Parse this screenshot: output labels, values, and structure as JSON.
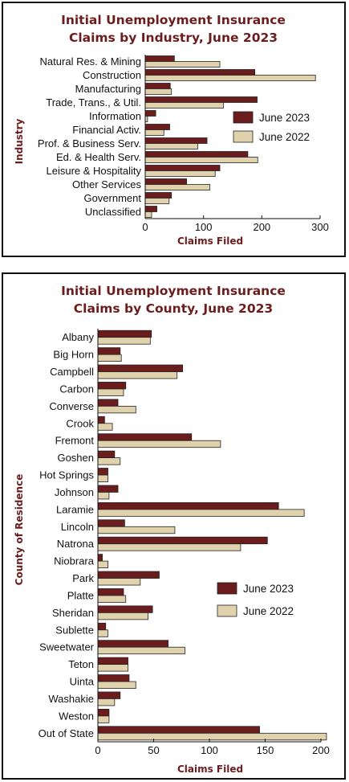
{
  "chart_data": [
    {
      "type": "bar",
      "orientation": "horizontal",
      "title_lines": [
        "Initial Unemployment Insurance",
        "Claims by Industry, June 2023"
      ],
      "xlabel": "Claims Filed",
      "ylabel": "Industry",
      "xlim": [
        0,
        300
      ],
      "xticks": [
        0,
        100,
        200,
        300
      ],
      "legend_position": "right",
      "categories": [
        "Natural Res. & Mining",
        "Construction",
        "Manufacturing",
        "Trade, Trans., & Util.",
        "Information",
        "Financial Activ.",
        "Prof. & Business Serv.",
        "Ed. & Health Serv.",
        "Leisure & Hospitality",
        "Other Services",
        "Government",
        "Unclassified"
      ],
      "series": [
        {
          "name": "June 2023",
          "color": "#6b1d1d",
          "values": [
            50,
            188,
            43,
            192,
            18,
            42,
            106,
            176,
            128,
            71,
            45,
            20
          ]
        },
        {
          "name": "June 2022",
          "color": "#e0d2ad",
          "values": [
            128,
            292,
            45,
            134,
            4,
            32,
            90,
            193,
            120,
            111,
            41,
            11
          ]
        }
      ]
    },
    {
      "type": "bar",
      "orientation": "horizontal",
      "title_lines": [
        "Initial Unemployment Insurance",
        "Claims by County, June 2023"
      ],
      "xlabel": "Claims Filed",
      "ylabel": "County of Residence",
      "xlim": [
        0,
        200
      ],
      "xticks": [
        0,
        50,
        100,
        150,
        200
      ],
      "legend_position": "right",
      "categories": [
        "Albany",
        "Big Horn",
        "Campbell",
        "Carbon",
        "Converse",
        "Crook",
        "Fremont",
        "Goshen",
        "Hot Springs",
        "Johnson",
        "Laramie",
        "Lincoln",
        "Natrona",
        "Niobrara",
        "Park",
        "Platte",
        "Sheridan",
        "Sublette",
        "Sweetwater",
        "Teton",
        "Uinta",
        "Washakie",
        "Weston",
        "Out of State"
      ],
      "series": [
        {
          "name": "June 2023",
          "color": "#6b1d1d",
          "values": [
            48,
            20,
            76,
            25,
            18,
            6,
            84,
            15,
            9,
            18,
            162,
            24,
            152,
            4,
            55,
            23,
            49,
            7,
            63,
            27,
            28,
            20,
            10,
            145
          ]
        },
        {
          "name": "June 2022",
          "color": "#e0d2ad",
          "values": [
            47,
            21,
            71,
            23,
            34,
            13,
            110,
            20,
            9,
            10,
            185,
            69,
            128,
            9,
            38,
            25,
            45,
            9,
            78,
            27,
            34,
            15,
            10,
            205
          ]
        }
      ]
    }
  ]
}
